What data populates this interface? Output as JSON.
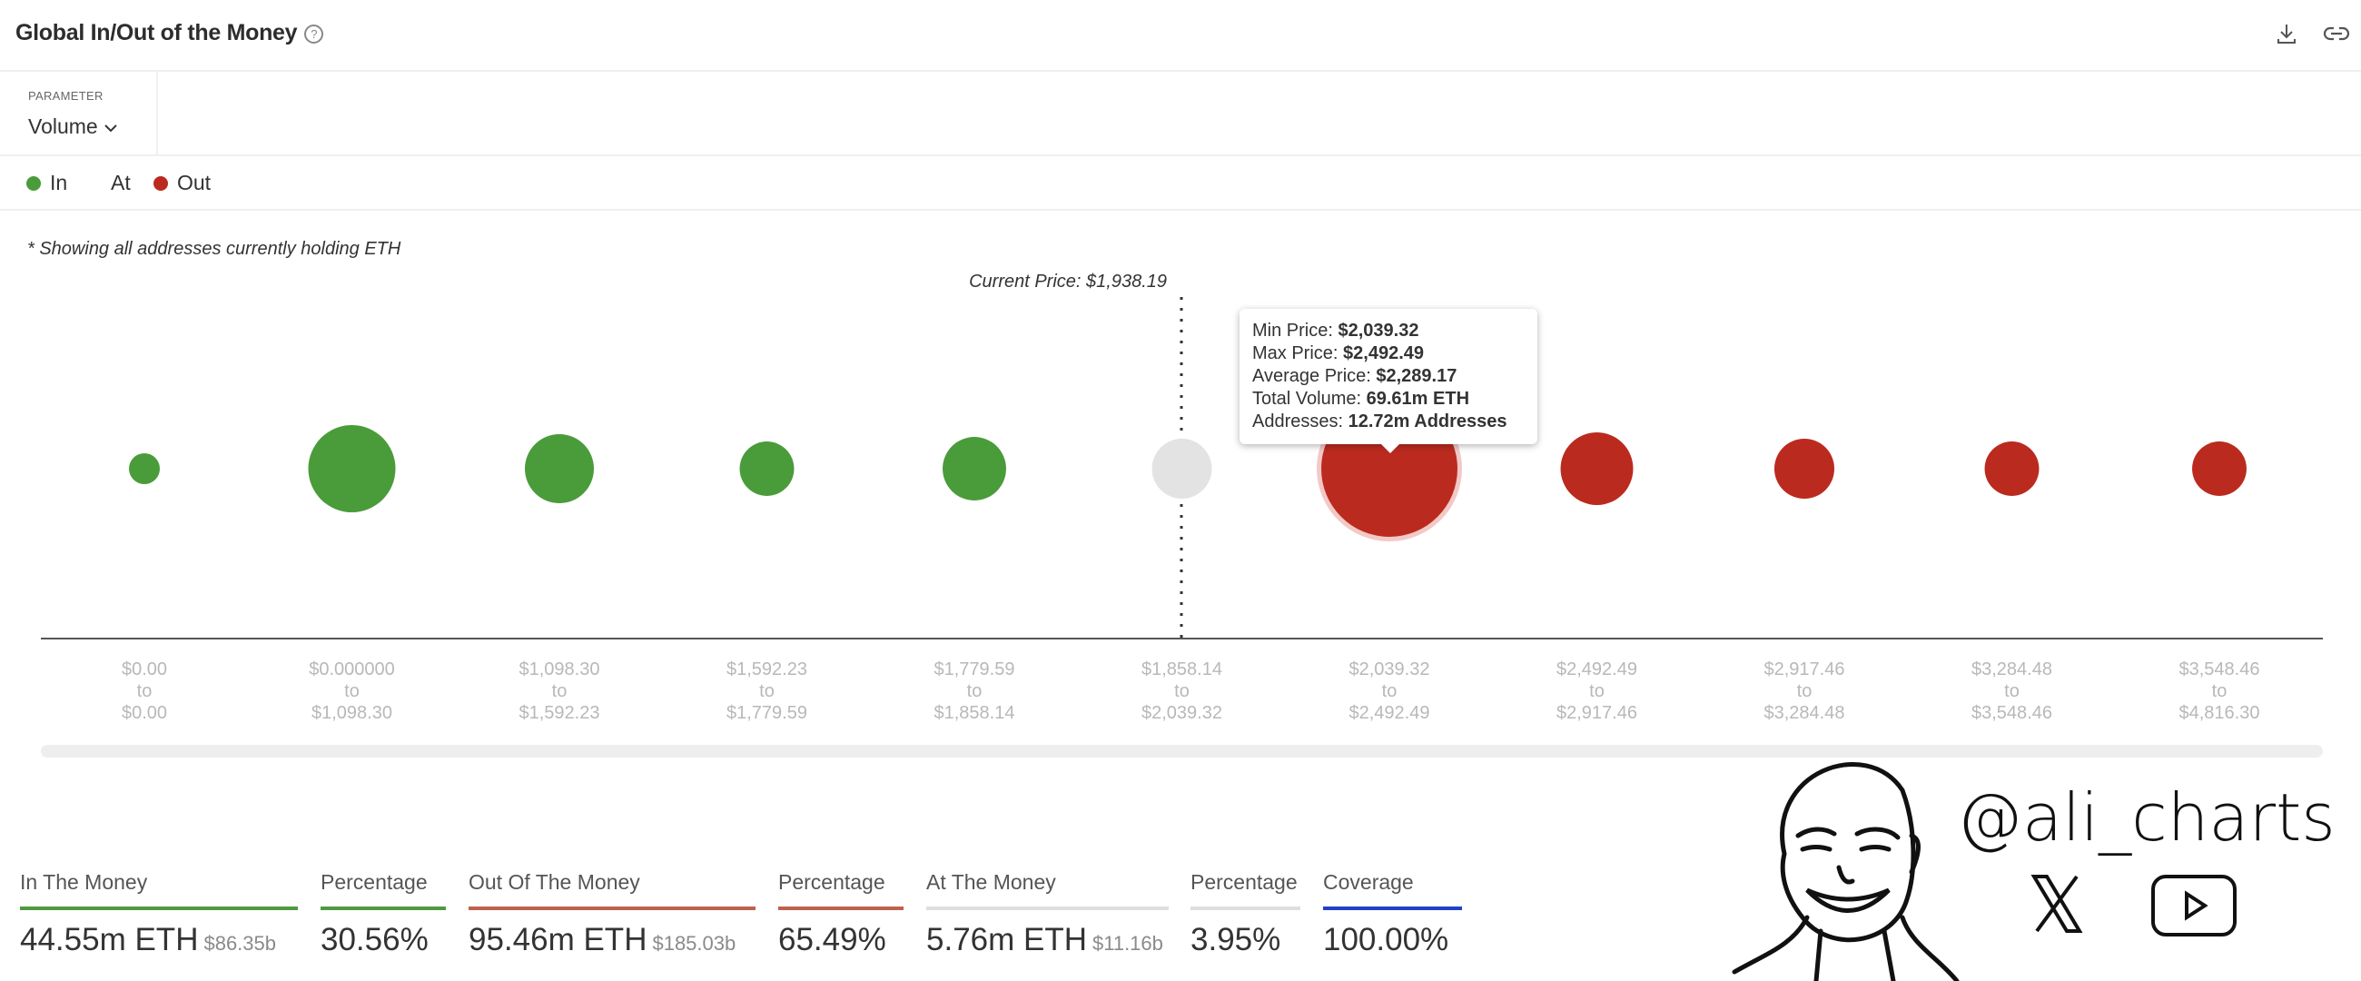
{
  "header": {
    "title": "Global In/Out of the Money",
    "help_icon": "?"
  },
  "toolbar": {
    "download_icon": "download-icon",
    "link_icon": "link-icon"
  },
  "parameter": {
    "label": "PARAMETER",
    "value": "Volume"
  },
  "legend": [
    {
      "label": "In",
      "color": "#4a9c3a"
    },
    {
      "label": "At",
      "color": "#e3e3e3"
    },
    {
      "label": "Out",
      "color": "#bb2a1f"
    }
  ],
  "note": "* Showing all addresses currently holding ETH",
  "chart_data": {
    "type": "bubble",
    "current_price_label": "Current Price: $1,938.19",
    "current_price": 1938.19,
    "unit": "m ETH (volume, estimated from bubble size)",
    "buckets": [
      {
        "from": "$0.00",
        "to": "$0.00",
        "status": "in",
        "volume": 0.02
      },
      {
        "from": "$0.000000",
        "to": "$1,098.30",
        "status": "in",
        "volume": 20.5
      },
      {
        "from": "$1,098.30",
        "to": "$1,592.23",
        "status": "in",
        "volume": 9.7
      },
      {
        "from": "$1,592.23",
        "to": "$1,779.59",
        "status": "in",
        "volume": 3.9
      },
      {
        "from": "$1,779.59",
        "to": "$1,858.14",
        "status": "in",
        "volume": 7.2
      },
      {
        "from": "$1,858.14",
        "to": "$2,039.32",
        "status": "at",
        "volume": 5.76
      },
      {
        "from": "$2,039.32",
        "to": "$2,492.49",
        "status": "out",
        "volume": 69.61,
        "highlighted": true
      },
      {
        "from": "$2,492.49",
        "to": "$2,917.46",
        "status": "out",
        "volume": 11.5
      },
      {
        "from": "$2,917.46",
        "to": "$3,284.48",
        "status": "out",
        "volume": 5.8
      },
      {
        "from": "$3,284.48",
        "to": "$3,548.46",
        "status": "out",
        "volume": 3.9
      },
      {
        "from": "$3,548.46",
        "to": "$4,816.30",
        "status": "out",
        "volume": 3.9
      }
    ],
    "to_word": "to"
  },
  "tooltip": {
    "rows": [
      {
        "label": "Min Price: ",
        "value": "$2,039.32"
      },
      {
        "label": "Max Price: ",
        "value": "$2,492.49"
      },
      {
        "label": "Average Price: ",
        "value": "$2,289.17"
      },
      {
        "label": "Total Volume: ",
        "value": "69.61m ETH"
      },
      {
        "label": "Addresses: ",
        "value": "12.72m Addresses"
      }
    ]
  },
  "stats": [
    {
      "label": "In The Money",
      "value": "44.55m ETH",
      "sub": "$86.35b",
      "color": "#4f9a40"
    },
    {
      "label": "Percentage",
      "value": "30.56%",
      "color": "#4f9a40"
    },
    {
      "label": "Out Of The Money",
      "value": "95.46m ETH",
      "sub": "$185.03b",
      "color": "#c0604f"
    },
    {
      "label": "Percentage",
      "value": "65.49%",
      "color": "#c0604f"
    },
    {
      "label": "At The Money",
      "value": "5.76m ETH",
      "sub": "$11.16b",
      "color": "#dedede"
    },
    {
      "label": "Percentage",
      "value": "3.95%",
      "color": "#dedede"
    },
    {
      "label": "Coverage",
      "value": "100.00%",
      "color": "#2340c8"
    }
  ],
  "watermark": {
    "handle": "@ali_charts",
    "icons": [
      "x-logo-icon",
      "youtube-icon"
    ]
  },
  "colors": {
    "in": "#4a9c3a",
    "at": "#e3e3e3",
    "out": "#bb2a1f",
    "out_halo": "#f2c9c6"
  }
}
